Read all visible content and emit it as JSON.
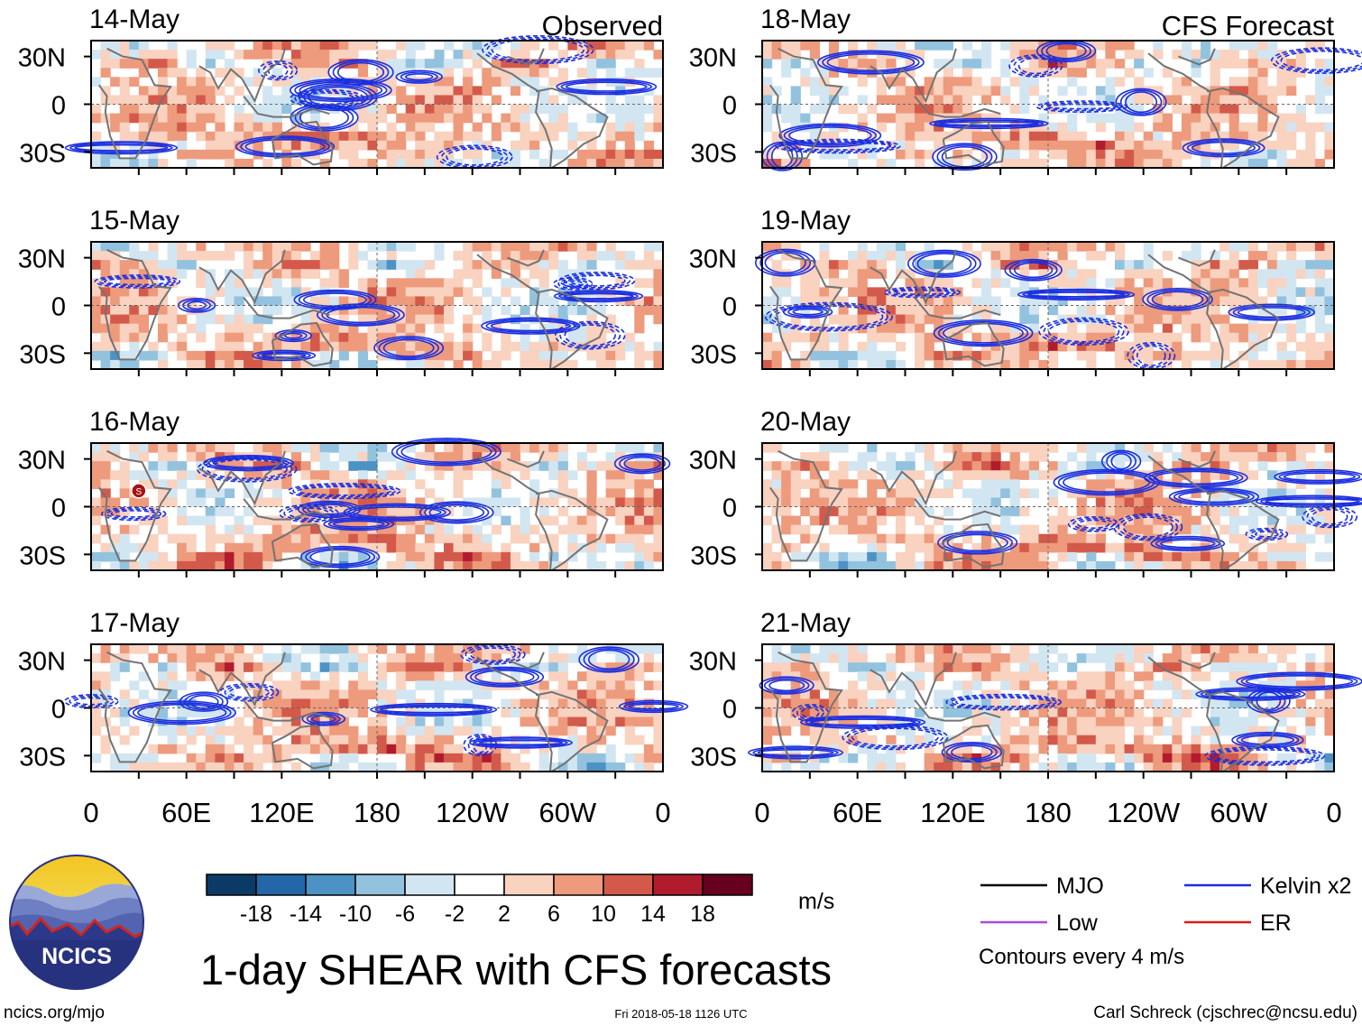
{
  "chart_data": {
    "type": "heatmap",
    "title": "1-day SHEAR with CFS forecasts",
    "units": "m/s",
    "column_titles": [
      "Observed",
      "CFS Forecast"
    ],
    "x_ticks": [
      "0",
      "60E",
      "120E",
      "180",
      "120W",
      "60W",
      "0"
    ],
    "x_range_deg": [
      0,
      360
    ],
    "y_ticks": [
      "30N",
      "0",
      "30S"
    ],
    "y_range_deg": [
      -40,
      40
    ],
    "panels": [
      {
        "date": "14-May",
        "column": "Observed"
      },
      {
        "date": "15-May",
        "column": "Observed"
      },
      {
        "date": "16-May",
        "column": "Observed",
        "annotation": "S"
      },
      {
        "date": "17-May",
        "column": "Observed"
      },
      {
        "date": "18-May",
        "column": "CFS Forecast"
      },
      {
        "date": "19-May",
        "column": "CFS Forecast"
      },
      {
        "date": "20-May",
        "column": "CFS Forecast"
      },
      {
        "date": "21-May",
        "column": "CFS Forecast"
      }
    ],
    "colorbar": {
      "labels": [
        "-18",
        "-14",
        "-10",
        "-6",
        "-2",
        "2",
        "6",
        "10",
        "14",
        "18"
      ],
      "colors": [
        "#0b3a66",
        "#2367a8",
        "#4c92c4",
        "#92c2de",
        "#d2e6f2",
        "#ffffff",
        "#f9d2c0",
        "#ee9a7c",
        "#d35a4b",
        "#b01c2e",
        "#67001f"
      ]
    },
    "legend": [
      {
        "label": "MJO",
        "color": "#000000"
      },
      {
        "label": "Kelvin x2",
        "color": "#1a2ee0"
      },
      {
        "label": "Low",
        "color": "#a64fd6"
      },
      {
        "label": "ER",
        "color": "#e01818"
      }
    ],
    "contour_note": "Contours every 4 m/s"
  },
  "logo": {
    "text": "NCICS"
  },
  "footer": {
    "left": "ncics.org/mjo",
    "center": "Fri 2018-05-18 1126 UTC",
    "right": "Carl Schreck (cjschrec@ncsu.edu)"
  }
}
